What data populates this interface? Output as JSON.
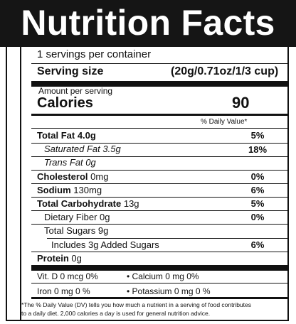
{
  "title": "Nutrition Facts",
  "servings_per_container": "1 servings per container",
  "serving_size_label": "Serving size",
  "serving_size_value": "(20g/0.71oz/1/3 cup)",
  "amount_per_serving": "Amount per serving",
  "calories_label": "Calories",
  "calories_value": "90",
  "daily_value_header": "% Daily Value*",
  "nutrients": {
    "total_fat": {
      "label": "Total Fat",
      "amount": "4.0g",
      "dv": "5%"
    },
    "saturated_fat": {
      "label": "Saturated Fat",
      "amount": "3.5g",
      "dv": "18%"
    },
    "trans_fat": {
      "label": "Trans Fat",
      "amount": "0g"
    },
    "cholesterol": {
      "label": "Cholesterol",
      "amount": "0mg",
      "dv": "0%"
    },
    "sodium": {
      "label": "Sodium",
      "amount": "130mg",
      "dv": "6%"
    },
    "total_carbohydrate": {
      "label": "Total Carbohydrate",
      "amount": "13g",
      "dv": "5%"
    },
    "dietary_fiber": {
      "label": "Dietary Fiber",
      "amount": "0g",
      "dv": "0%"
    },
    "total_sugars": {
      "label": "Total Sugars",
      "amount": "9g"
    },
    "added_sugars": {
      "label": "Includes 3g Added Sugars",
      "dv": "6%"
    },
    "protein": {
      "label": "Protein",
      "amount": "0g"
    }
  },
  "vitamins": {
    "vit_d": "Vit. D 0 mcg 0%",
    "calcium": "• Calcium 0 mg 0%",
    "iron": "Iron 0 mg 0 %",
    "potassium": "• Potassium 0 mg 0 %"
  },
  "footnote_line1": "*The % Daily Value (DV) tells you how much a nutrient in a  serving of food contributes",
  "footnote_line2": "to a daily diet. 2,000 calories a day is used for general nutrition advice."
}
